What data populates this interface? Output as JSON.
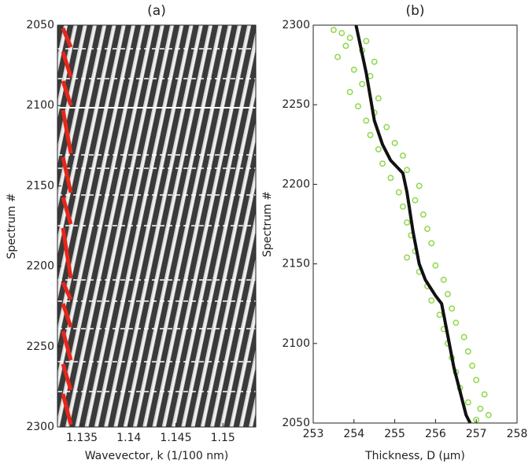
{
  "chart_data": [
    {
      "type": "heatmap",
      "title": "(a)",
      "x_label": "Wavevector, k (1/100 nm)",
      "y_label": "Spectrum #",
      "xlim": [
        1.1324,
        1.1535
      ],
      "xticks": [
        1.135,
        1.14,
        1.145,
        1.15
      ],
      "ylim": [
        2050,
        2300
      ],
      "yticks": [
        2050,
        2100,
        2150,
        2200,
        2250,
        2300
      ],
      "y_inverted": true
    },
    {
      "type": "scatter",
      "title": "(b)",
      "x_label": "Thickness, D (µm)",
      "y_label": "Spectrum #",
      "xlim": [
        253,
        258
      ],
      "xticks": [
        253,
        254,
        255,
        256,
        257,
        258
      ],
      "ylim": [
        2050,
        2300
      ],
      "yticks": [
        2050,
        2100,
        2150,
        2200,
        2250,
        2300
      ],
      "points": {
        "color": "#8ed84a",
        "x": [
          253.5,
          253.7,
          253.9,
          254.3,
          253.8,
          254.2,
          253.6,
          254.5,
          254.0,
          254.4,
          254.2,
          253.9,
          254.6,
          254.1,
          254.5,
          254.3,
          254.8,
          254.4,
          255.0,
          254.6,
          255.2,
          254.7,
          255.3,
          254.9,
          255.6,
          255.1,
          255.5,
          255.2,
          255.7,
          255.3,
          255.8,
          255.4,
          255.9,
          255.5,
          255.3,
          256.0,
          255.6,
          256.2,
          255.8,
          256.3,
          255.9,
          256.4,
          256.1,
          256.5,
          256.2,
          256.7,
          256.3,
          256.8,
          256.4,
          256.9,
          256.5,
          257.0,
          256.6,
          257.2,
          256.8,
          257.1,
          257.3,
          257.0
        ],
        "y": [
          2297,
          2295,
          2292,
          2290,
          2287,
          2284,
          2280,
          2277,
          2272,
          2268,
          2263,
          2258,
          2254,
          2249,
          2245,
          2240,
          2236,
          2231,
          2226,
          2222,
          2218,
          2213,
          2209,
          2204,
          2199,
          2195,
          2190,
          2186,
          2181,
          2176,
          2172,
          2168,
          2163,
          2158,
          2154,
          2149,
          2145,
          2140,
          2136,
          2131,
          2127,
          2122,
          2118,
          2113,
          2109,
          2104,
          2100,
          2095,
          2091,
          2086,
          2082,
          2077,
          2072,
          2068,
          2063,
          2059,
          2055,
          2052
        ]
      },
      "line": {
        "color": "#111111",
        "x": [
          254.05,
          254.3,
          254.5,
          254.7,
          254.9,
          255.2,
          255.3,
          255.45,
          255.6,
          255.75,
          256.0,
          256.15,
          256.3,
          256.45,
          256.6,
          256.75,
          256.85
        ],
        "y": [
          2300,
          2270,
          2240,
          2225,
          2215,
          2207,
          2195,
          2170,
          2150,
          2140,
          2130,
          2125,
          2105,
          2085,
          2070,
          2055,
          2050
        ]
      }
    }
  ]
}
